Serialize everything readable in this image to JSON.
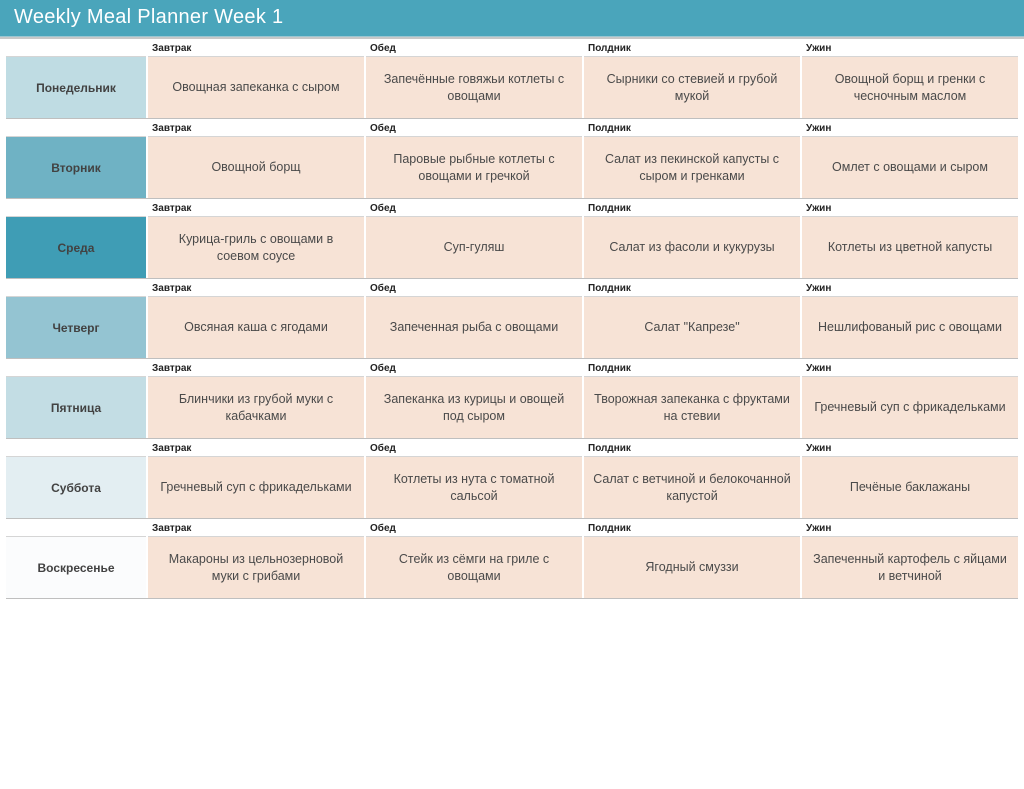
{
  "title": "Weekly Meal Planner Week 1",
  "meal_headers": [
    "Завтрак",
    "Обед",
    "Полдник",
    "Ужин"
  ],
  "colors": {
    "title_bg": "#4aa5bb",
    "title_text": "#ffffff",
    "meal_cell_bg": "#f7e3d6",
    "grid_border": "#bfbfbf",
    "cell_top_border": "#d5d5d5"
  },
  "day_colors": [
    "#bfdce3",
    "#6fb2c4",
    "#3f9db5",
    "#94c4d2",
    "#c3dde4",
    "#e3eef2",
    "#fbfcfd"
  ],
  "days": [
    {
      "name": "Понедельник",
      "meals": [
        "Овощная запеканка с сыром",
        "Запечённые говяжьи котлеты с овощами",
        "Сырники со стевией и грубой мукой",
        "Овощной борщ и гренки с чесночным маслом"
      ]
    },
    {
      "name": "Вторник",
      "meals": [
        "Овощной борщ",
        "Паровые рыбные котлеты с овощами и гречкой",
        "Салат из пекинской капусты с сыром и гренками",
        "Омлет с овощами и сыром"
      ]
    },
    {
      "name": "Среда",
      "meals": [
        "Курица-гриль с овощами в соевом соусе",
        "Суп-гуляш",
        "Салат из фасоли и кукурузы",
        "Котлеты из цветной капусты"
      ]
    },
    {
      "name": "Четверг",
      "meals": [
        "Овсяная каша с ягодами",
        "Запеченная рыба с овощами",
        "Салат \"Капрезе\"",
        "Нешлифованый рис с овощами"
      ]
    },
    {
      "name": "Пятница",
      "meals": [
        "Блинчики из грубой муки с кабачками",
        "Запеканка из курицы и овощей под сыром",
        "Творожная запеканка с фруктами на стевии",
        "Гречневый суп с фрикадельками"
      ]
    },
    {
      "name": "Суббота",
      "meals": [
        "Гречневый суп с фрикадельками",
        "Котлеты из нута с томатной сальсой",
        "Салат с ветчиной и белокочанной капустой",
        "Печёные баклажаны"
      ]
    },
    {
      "name": "Воскресенье",
      "meals": [
        "Макароны из цельнозерновой муки с грибами",
        "Стейк из сёмги на гриле с овощами",
        "Ягодный смуззи",
        "Запеченный картофель с яйцами и ветчиной"
      ]
    }
  ]
}
